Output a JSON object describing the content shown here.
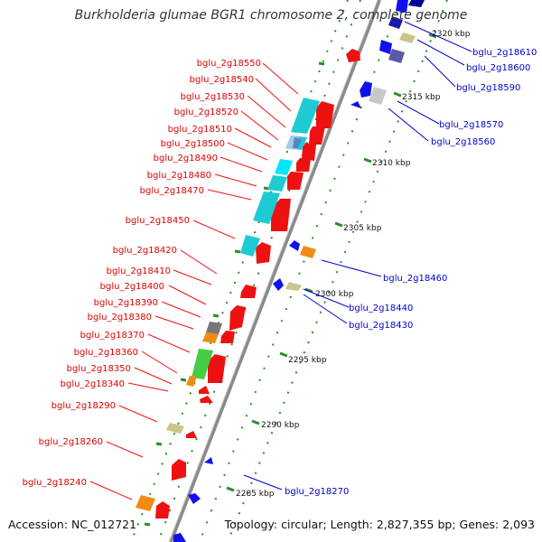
{
  "map": {
    "title": "Burkholderia glumae BGR1 chromosome 2, complete genome",
    "accession": "Accession: NC_012721",
    "topology": "Topology: circular; Length: 2,827,355 bp; Genes: 2,093",
    "colors": {
      "backbone": "#909090",
      "forward_label": "#dd0000",
      "reverse_label": "#0000cc",
      "tick_green": "#2e8b2e"
    },
    "scale_ticks": [
      {
        "label": "2320 kbp"
      },
      {
        "label": "2315 kbp"
      },
      {
        "label": "2310 kbp"
      },
      {
        "label": "2305 kbp"
      },
      {
        "label": "2300 kbp"
      },
      {
        "label": "2295 kbp"
      },
      {
        "label": "2290 kbp"
      },
      {
        "label": "2285 kbp"
      }
    ],
    "forward_labels": [
      "bglu_2g18550",
      "bglu_2g18540",
      "bglu_2g18530",
      "bglu_2g18520",
      "bglu_2g18510",
      "bglu_2g18500",
      "bglu_2g18490",
      "bglu_2g18480",
      "bglu_2g18470",
      "bglu_2g18450",
      "bglu_2g18420",
      "bglu_2g18410",
      "bglu_2g18400",
      "bglu_2g18390",
      "bglu_2g18380",
      "bglu_2g18370",
      "bglu_2g18360",
      "bglu_2g18350",
      "bglu_2g18340",
      "bglu_2g18290",
      "bglu_2g18260",
      "bglu_2g18240"
    ],
    "reverse_labels": [
      "bglu_2g18610",
      "bglu_2g18600",
      "bglu_2g18590",
      "bglu_2g18570",
      "bglu_2g18560",
      "bglu_2g18460",
      "bglu_2g18440",
      "bglu_2g18430",
      "bglu_2g18270"
    ]
  }
}
